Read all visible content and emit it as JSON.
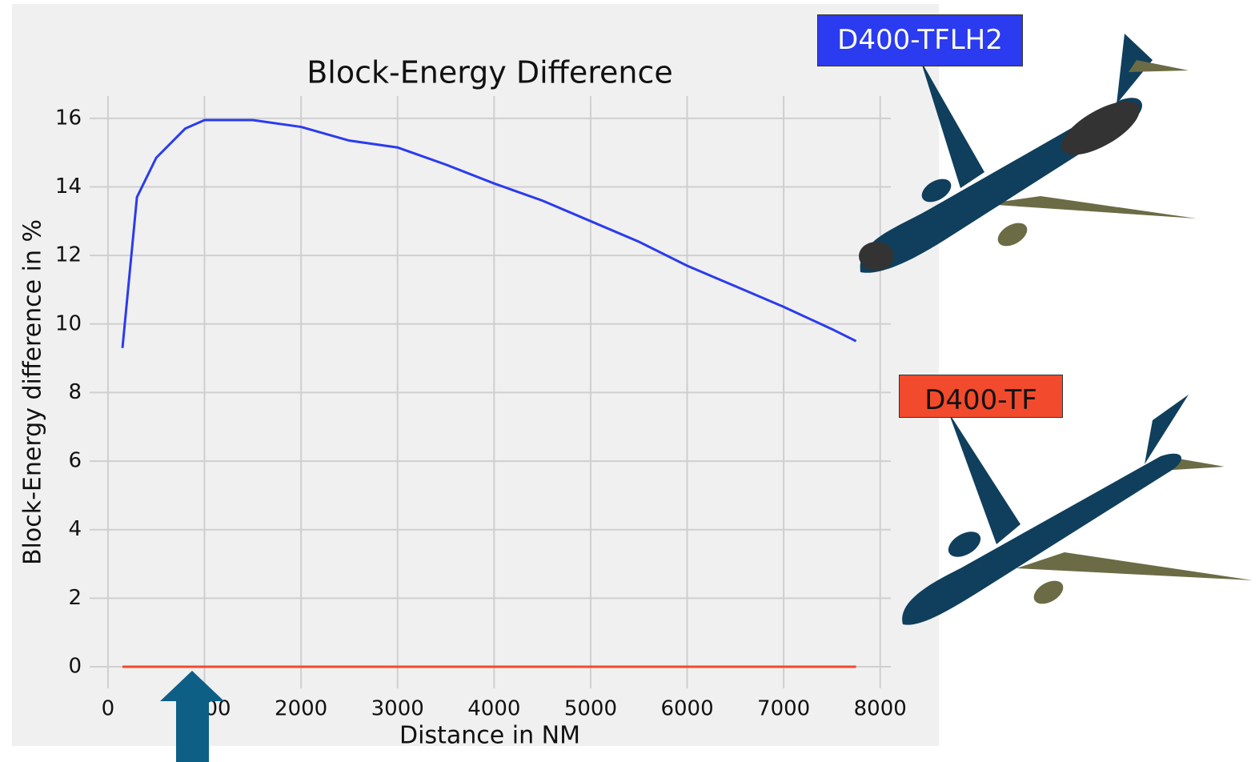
{
  "chart_data": {
    "type": "line",
    "title": "Block-Energy Difference",
    "x_label": "Distance in NM",
    "y_label": "Block-Energy difference in %",
    "x": [
      150,
      300,
      500,
      800,
      1000,
      1500,
      2000,
      2500,
      3000,
      3500,
      4000,
      4500,
      5000,
      5500,
      6000,
      6500,
      7000,
      7500,
      7750
    ],
    "series": [
      {
        "name": "D400-TFLH2",
        "color": "#2b3bef",
        "values": [
          9.3,
          13.7,
          14.85,
          15.7,
          15.95,
          15.95,
          15.75,
          15.35,
          15.15,
          14.65,
          14.1,
          13.6,
          13.0,
          12.4,
          11.7,
          11.1,
          10.5,
          9.85,
          9.5
        ]
      },
      {
        "name": "D400-TF",
        "color": "#f24a2c",
        "values": [
          0,
          0,
          0,
          0,
          0,
          0,
          0,
          0,
          0,
          0,
          0,
          0,
          0,
          0,
          0,
          0,
          0,
          0,
          0
        ]
      }
    ],
    "xlim": [
      -190,
      8110
    ],
    "ylim": [
      -0.63,
      16.65
    ],
    "xticks": [
      0,
      1000,
      2000,
      3000,
      4000,
      5000,
      6000,
      7000,
      8000
    ],
    "yticks": [
      0,
      2,
      4,
      6,
      8,
      10,
      12,
      14,
      16
    ],
    "grid": true
  }
}
